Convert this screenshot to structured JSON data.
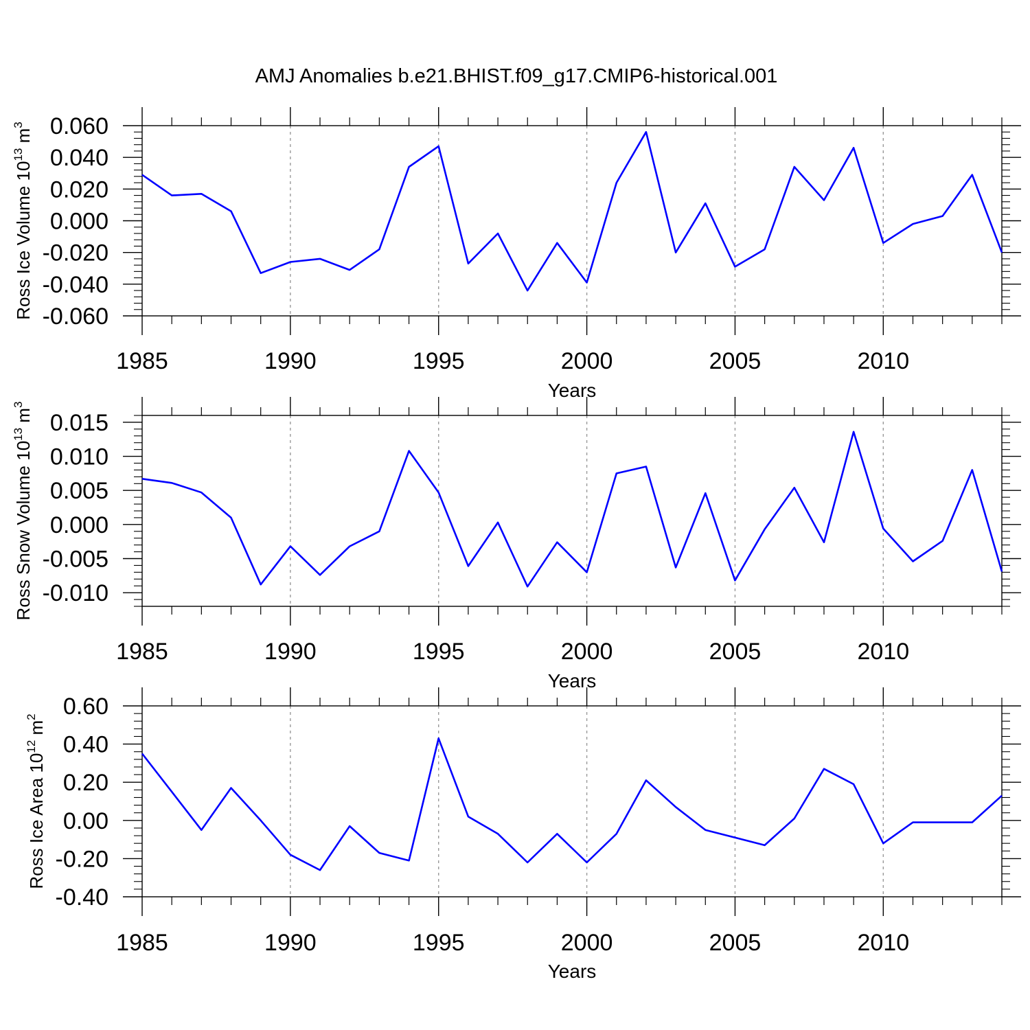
{
  "title": "AMJ Anomalies b.e21.BHIST.f09_g17.CMIP6-historical.001",
  "line_color": "#0000ff",
  "chart_data": [
    {
      "type": "line",
      "title": "AMJ Anomalies b.e21.BHIST.f09_g17.CMIP6-historical.001",
      "ylabel": "Ross Ice Volume 10",
      "ylabel_exp": "13",
      "ylabel_unit": " m",
      "ylabel_unit_exp": "3",
      "xlabel": "Years",
      "xlim": [
        1985,
        2014
      ],
      "ylim": [
        -0.06,
        0.06
      ],
      "yticks": [
        -0.06,
        -0.04,
        -0.02,
        0.0,
        0.02,
        0.04,
        0.06
      ],
      "ytick_labels": [
        "-0.060",
        "-0.040",
        "-0.020",
        "0.000",
        "0.020",
        "0.040",
        "0.060"
      ],
      "xticks": [
        1985,
        1990,
        1995,
        2000,
        2005,
        2010
      ],
      "xtick_labels": [
        "1985",
        "1990",
        "1995",
        "2000",
        "2005",
        "2010"
      ],
      "x": [
        1985,
        1986,
        1987,
        1988,
        1989,
        1990,
        1991,
        1992,
        1993,
        1994,
        1995,
        1996,
        1997,
        1998,
        1999,
        2000,
        2001,
        2002,
        2003,
        2004,
        2005,
        2006,
        2007,
        2008,
        2009,
        2010,
        2011,
        2012,
        2013,
        2014
      ],
      "values": [
        0.029,
        0.016,
        0.017,
        0.006,
        -0.033,
        -0.026,
        -0.024,
        -0.031,
        -0.018,
        0.034,
        0.047,
        -0.027,
        -0.008,
        -0.044,
        -0.014,
        -0.039,
        0.024,
        0.056,
        -0.02,
        0.011,
        -0.029,
        -0.018,
        0.034,
        0.013,
        0.046,
        -0.014,
        -0.002,
        0.003,
        0.029,
        -0.02
      ]
    },
    {
      "type": "line",
      "ylabel": "Ross Snow Volume 10",
      "ylabel_exp": "13",
      "ylabel_unit": " m",
      "ylabel_unit_exp": "3",
      "xlabel": "Years",
      "xlim": [
        1985,
        2014
      ],
      "ylim": [
        -0.012,
        0.016
      ],
      "yticks": [
        -0.01,
        -0.005,
        0.0,
        0.005,
        0.01,
        0.015
      ],
      "ytick_labels": [
        "-0.010",
        "-0.005",
        "0.000",
        "0.005",
        "0.010",
        "0.015"
      ],
      "xticks": [
        1985,
        1990,
        1995,
        2000,
        2005,
        2010
      ],
      "xtick_labels": [
        "1985",
        "1990",
        "1995",
        "2000",
        "2005",
        "2010"
      ],
      "x": [
        1985,
        1986,
        1987,
        1988,
        1989,
        1990,
        1991,
        1992,
        1993,
        1994,
        1995,
        1996,
        1997,
        1998,
        1999,
        2000,
        2001,
        2002,
        2003,
        2004,
        2005,
        2006,
        2007,
        2008,
        2009,
        2010,
        2011,
        2012,
        2013,
        2014
      ],
      "values": [
        0.0067,
        0.0061,
        0.0047,
        0.001,
        -0.0088,
        -0.0032,
        -0.0074,
        -0.0032,
        -0.001,
        0.0108,
        0.0047,
        -0.0061,
        0.0003,
        -0.0091,
        -0.0026,
        -0.007,
        0.0075,
        0.0085,
        -0.0063,
        0.0046,
        -0.0082,
        -0.0007,
        0.0054,
        -0.0026,
        0.0136,
        -0.0006,
        -0.0054,
        -0.0024,
        0.008,
        -0.0069
      ]
    },
    {
      "type": "line",
      "ylabel": "Ross Ice Area 10",
      "ylabel_exp": "12",
      "ylabel_unit": " m",
      "ylabel_unit_exp": "2",
      "xlabel": "Years",
      "xlim": [
        1985,
        2014
      ],
      "ylim": [
        -0.4,
        0.6
      ],
      "yticks": [
        -0.4,
        -0.2,
        0.0,
        0.2,
        0.4,
        0.6
      ],
      "ytick_labels": [
        "-0.40",
        "-0.20",
        "0.00",
        "0.20",
        "0.40",
        "0.60"
      ],
      "xticks": [
        1985,
        1990,
        1995,
        2000,
        2005,
        2010
      ],
      "xtick_labels": [
        "1985",
        "1990",
        "1995",
        "2000",
        "2005",
        "2010"
      ],
      "x": [
        1985,
        1986,
        1987,
        1988,
        1989,
        1990,
        1991,
        1992,
        1993,
        1994,
        1995,
        1996,
        1997,
        1998,
        1999,
        2000,
        2001,
        2002,
        2003,
        2004,
        2005,
        2006,
        2007,
        2008,
        2009,
        2010,
        2011,
        2012,
        2013,
        2014
      ],
      "values": [
        0.35,
        0.15,
        -0.05,
        0.17,
        0.0,
        -0.18,
        -0.26,
        -0.03,
        -0.17,
        -0.21,
        0.43,
        0.02,
        -0.07,
        -0.22,
        -0.07,
        -0.22,
        -0.07,
        0.21,
        0.07,
        -0.05,
        -0.09,
        -0.13,
        0.01,
        0.27,
        0.19,
        -0.12,
        -0.01,
        -0.01,
        -0.01,
        0.13
      ]
    }
  ]
}
